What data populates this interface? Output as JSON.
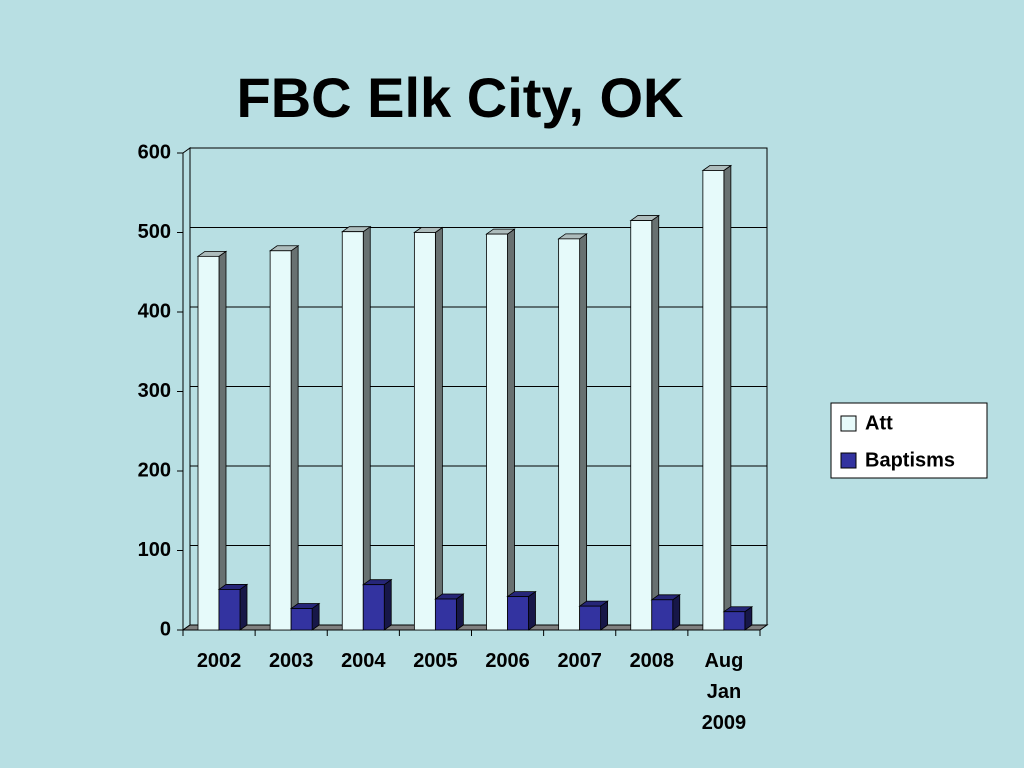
{
  "chart_data": {
    "type": "bar",
    "title": "FBC Elk City, OK",
    "categories": [
      "2002",
      "2003",
      "2004",
      "2005",
      "2006",
      "2007",
      "2008",
      "Aug Jan 2009"
    ],
    "series": [
      {
        "name": "Att",
        "color": "#e6fafa",
        "values": [
          470,
          477,
          501,
          500,
          498,
          492,
          515,
          578
        ]
      },
      {
        "name": "Baptisms",
        "color": "#3333a0",
        "values": [
          51,
          27,
          57,
          39,
          42,
          30,
          38,
          23
        ]
      }
    ],
    "ylim": [
      0,
      600
    ],
    "yticks": [
      0,
      100,
      200,
      300,
      400,
      500,
      600
    ],
    "grid": true,
    "legend": "right"
  }
}
